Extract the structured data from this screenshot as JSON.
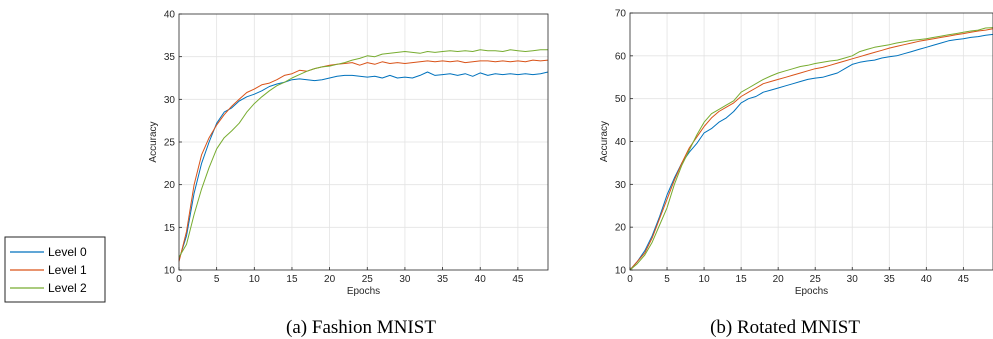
{
  "chart_data": [
    {
      "type": "line",
      "caption": "(a) Fashion MNIST",
      "xlabel": "Epochs",
      "ylabel": "Accuracy",
      "xlim": [
        0,
        49
      ],
      "ylim": [
        10,
        40
      ],
      "xticks": [
        0,
        5,
        10,
        15,
        20,
        25,
        30,
        35,
        40,
        45
      ],
      "yticks": [
        10,
        15,
        20,
        25,
        30,
        35,
        40
      ],
      "grid": true,
      "x": [
        0,
        1,
        2,
        3,
        4,
        5,
        6,
        7,
        8,
        9,
        10,
        11,
        12,
        13,
        14,
        15,
        16,
        17,
        18,
        19,
        20,
        21,
        22,
        23,
        24,
        25,
        26,
        27,
        28,
        29,
        30,
        31,
        32,
        33,
        34,
        35,
        36,
        37,
        38,
        39,
        40,
        41,
        42,
        43,
        44,
        45,
        46,
        47,
        48,
        49
      ],
      "series": [
        {
          "name": "Level 0",
          "color": "#0072BD",
          "values": [
            11.2,
            14.0,
            19.0,
            22.5,
            25.0,
            27.2,
            28.5,
            29.0,
            29.8,
            30.3,
            30.6,
            31.0,
            31.5,
            31.8,
            32.0,
            32.3,
            32.4,
            32.3,
            32.2,
            32.3,
            32.5,
            32.7,
            32.8,
            32.8,
            32.7,
            32.6,
            32.7,
            32.5,
            32.8,
            32.5,
            32.6,
            32.5,
            32.8,
            33.2,
            32.8,
            32.9,
            33.0,
            32.8,
            33.0,
            32.7,
            33.1,
            32.8,
            33.0,
            32.9,
            33.0,
            32.9,
            33.0,
            32.9,
            33.0,
            33.2
          ]
        },
        {
          "name": "Level 1",
          "color": "#D95319",
          "values": [
            11.0,
            14.5,
            20.0,
            23.5,
            25.5,
            27.0,
            28.2,
            29.2,
            30.0,
            30.8,
            31.2,
            31.7,
            31.9,
            32.3,
            32.8,
            33.0,
            33.4,
            33.3,
            33.6,
            33.8,
            34.0,
            34.1,
            34.2,
            34.3,
            34.0,
            34.3,
            34.1,
            34.4,
            34.2,
            34.3,
            34.2,
            34.3,
            34.4,
            34.5,
            34.4,
            34.5,
            34.4,
            34.5,
            34.3,
            34.4,
            34.5,
            34.5,
            34.4,
            34.5,
            34.4,
            34.5,
            34.4,
            34.6,
            34.5,
            34.6
          ]
        },
        {
          "name": "Level 2",
          "color": "#77AC30",
          "values": [
            11.5,
            13.0,
            16.5,
            19.5,
            22.0,
            24.2,
            25.5,
            26.3,
            27.2,
            28.5,
            29.5,
            30.3,
            31.0,
            31.6,
            32.0,
            32.5,
            32.9,
            33.3,
            33.6,
            33.8,
            33.9,
            34.1,
            34.3,
            34.6,
            34.8,
            35.1,
            35.0,
            35.3,
            35.4,
            35.5,
            35.6,
            35.5,
            35.4,
            35.6,
            35.5,
            35.6,
            35.7,
            35.6,
            35.7,
            35.6,
            35.8,
            35.7,
            35.7,
            35.6,
            35.8,
            35.7,
            35.6,
            35.7,
            35.8,
            35.8
          ]
        }
      ]
    },
    {
      "type": "line",
      "caption": "(b) Rotated MNIST",
      "xlabel": "Epochs",
      "ylabel": "Accuracy",
      "xlim": [
        0,
        49
      ],
      "ylim": [
        10,
        70
      ],
      "xticks": [
        0,
        5,
        10,
        15,
        20,
        25,
        30,
        35,
        40,
        45
      ],
      "yticks": [
        10,
        20,
        30,
        40,
        50,
        60,
        70
      ],
      "grid": true,
      "x": [
        0,
        1,
        2,
        3,
        4,
        5,
        6,
        7,
        8,
        9,
        10,
        11,
        12,
        13,
        14,
        15,
        16,
        17,
        18,
        19,
        20,
        21,
        22,
        23,
        24,
        25,
        26,
        27,
        28,
        29,
        30,
        31,
        32,
        33,
        34,
        35,
        36,
        37,
        38,
        39,
        40,
        41,
        42,
        43,
        44,
        45,
        46,
        47,
        48,
        49
      ],
      "series": [
        {
          "name": "Level 0",
          "color": "#0072BD",
          "values": [
            10.0,
            12.0,
            14.5,
            18.0,
            22.5,
            27.5,
            31.5,
            35.0,
            37.5,
            39.5,
            42.0,
            43.0,
            44.5,
            45.5,
            47.0,
            49.0,
            50.0,
            50.5,
            51.5,
            52.0,
            52.5,
            53.0,
            53.5,
            54.0,
            54.5,
            54.8,
            55.0,
            55.5,
            56.0,
            57.0,
            58.0,
            58.5,
            58.8,
            59.0,
            59.5,
            59.8,
            60.0,
            60.5,
            61.0,
            61.5,
            62.0,
            62.5,
            63.0,
            63.5,
            63.8,
            64.0,
            64.3,
            64.5,
            64.8,
            65.0
          ]
        },
        {
          "name": "Level 1",
          "color": "#D95319",
          "values": [
            10.0,
            12.0,
            14.0,
            17.5,
            22.0,
            26.5,
            31.0,
            35.0,
            38.5,
            41.0,
            43.5,
            45.5,
            47.0,
            48.0,
            49.0,
            50.5,
            51.5,
            52.5,
            53.5,
            54.0,
            54.5,
            55.0,
            55.5,
            56.0,
            56.5,
            57.0,
            57.3,
            57.8,
            58.3,
            58.8,
            59.3,
            59.8,
            60.3,
            60.8,
            61.3,
            61.8,
            62.2,
            62.6,
            63.0,
            63.4,
            63.7,
            64.0,
            64.3,
            64.6,
            64.9,
            65.2,
            65.5,
            65.8,
            66.0,
            66.3
          ]
        },
        {
          "name": "Level 2",
          "color": "#77AC30",
          "values": [
            10.0,
            11.5,
            13.5,
            16.5,
            20.5,
            24.5,
            30.0,
            34.5,
            38.0,
            41.5,
            44.5,
            46.5,
            47.5,
            48.5,
            49.5,
            51.5,
            52.5,
            53.5,
            54.5,
            55.3,
            56.0,
            56.5,
            57.0,
            57.5,
            57.8,
            58.2,
            58.5,
            58.8,
            59.0,
            59.5,
            60.0,
            61.0,
            61.5,
            62.0,
            62.3,
            62.6,
            63.0,
            63.3,
            63.6,
            63.8,
            64.0,
            64.3,
            64.6,
            64.9,
            65.2,
            65.5,
            65.8,
            66.0,
            66.5,
            66.6
          ]
        }
      ]
    }
  ],
  "legend": {
    "placement": "left",
    "entries": [
      "Level 0",
      "Level 1",
      "Level 2"
    ]
  }
}
